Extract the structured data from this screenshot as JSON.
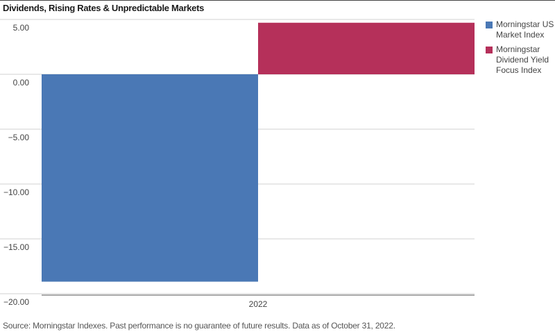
{
  "title": "Dividends, Rising Rates & Unpredictable Markets",
  "source": "Source: Morningstar Indexes. Past performance is no guarantee of future results.  Data as of October 31, 2022.",
  "chart_data": {
    "type": "bar",
    "categories": [
      "2022"
    ],
    "series": [
      {
        "name": "Morningstar US Market Index",
        "values": [
          -18.9
        ],
        "color": "#4a78b5"
      },
      {
        "name": "Morningstar Dividend Yield Focus Index",
        "values": [
          4.7
        ],
        "color": "#b5305a"
      }
    ],
    "ylim": [
      -20,
      5
    ],
    "yticks": [
      5,
      0,
      -5,
      -10,
      -15,
      -20
    ],
    "ytick_labels": [
      "5.00",
      "0.00",
      "−5.00",
      "−10.00",
      "−15.00",
      "−20.00"
    ],
    "xlabel": "",
    "ylabel": "",
    "grid": true,
    "legend_position": "right"
  }
}
